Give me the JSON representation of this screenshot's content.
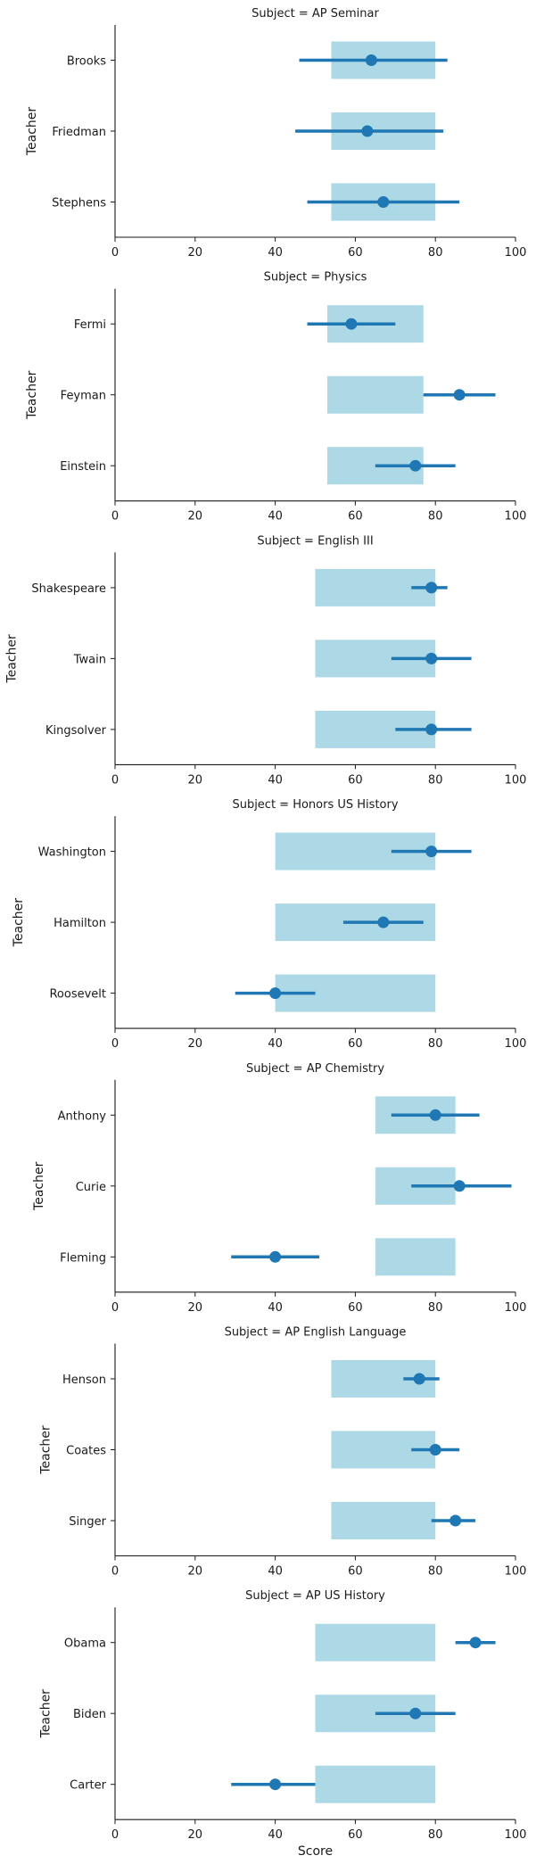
{
  "chart_data": {
    "type": "point-range",
    "facet_label": "Subject",
    "xlabel": "Score",
    "ylabel": "Teacher",
    "xlim": [
      0,
      100
    ],
    "xticks": [
      0,
      20,
      40,
      60,
      80,
      100
    ],
    "colors": {
      "band": "#add8e6",
      "point": "#1f77b4"
    },
    "panels": [
      {
        "title": "Subject = AP Seminar",
        "band": [
          54,
          80
        ],
        "teachers": [
          {
            "name": "Brooks",
            "mean": 64,
            "low": 46,
            "high": 83
          },
          {
            "name": "Friedman",
            "mean": 63,
            "low": 45,
            "high": 82
          },
          {
            "name": "Stephens",
            "mean": 67,
            "low": 48,
            "high": 86
          }
        ]
      },
      {
        "title": "Subject = Physics",
        "band": [
          53,
          77
        ],
        "teachers": [
          {
            "name": "Fermi",
            "mean": 59,
            "low": 48,
            "high": 70
          },
          {
            "name": "Feyman",
            "mean": 86,
            "low": 77,
            "high": 95
          },
          {
            "name": "Einstein",
            "mean": 75,
            "low": 65,
            "high": 85
          }
        ]
      },
      {
        "title": "Subject = English III",
        "band": [
          50,
          80
        ],
        "teachers": [
          {
            "name": "Shakespeare",
            "mean": 79,
            "low": 74,
            "high": 83
          },
          {
            "name": "Twain",
            "mean": 79,
            "low": 69,
            "high": 89
          },
          {
            "name": "Kingsolver",
            "mean": 79,
            "low": 70,
            "high": 89
          }
        ]
      },
      {
        "title": "Subject = Honors US History",
        "band": [
          40,
          80
        ],
        "teachers": [
          {
            "name": "Washington",
            "mean": 79,
            "low": 69,
            "high": 89
          },
          {
            "name": "Hamilton",
            "mean": 67,
            "low": 57,
            "high": 77
          },
          {
            "name": "Roosevelt",
            "mean": 40,
            "low": 30,
            "high": 50
          }
        ]
      },
      {
        "title": "Subject = AP Chemistry",
        "band": [
          65,
          85
        ],
        "teachers": [
          {
            "name": "Anthony",
            "mean": 80,
            "low": 69,
            "high": 91
          },
          {
            "name": "Curie",
            "mean": 86,
            "low": 74,
            "high": 99
          },
          {
            "name": "Fleming",
            "mean": 40,
            "low": 29,
            "high": 51
          }
        ]
      },
      {
        "title": "Subject = AP English Language",
        "band": [
          54,
          80
        ],
        "teachers": [
          {
            "name": "Henson",
            "mean": 76,
            "low": 72,
            "high": 81
          },
          {
            "name": "Coates",
            "mean": 80,
            "low": 74,
            "high": 86
          },
          {
            "name": "Singer",
            "mean": 85,
            "low": 79,
            "high": 90
          }
        ]
      },
      {
        "title": "Subject = AP US History",
        "band": [
          50,
          80
        ],
        "teachers": [
          {
            "name": "Obama",
            "mean": 90,
            "low": 85,
            "high": 95
          },
          {
            "name": "Biden",
            "mean": 75,
            "low": 65,
            "high": 85
          },
          {
            "name": "Carter",
            "mean": 40,
            "low": 29,
            "high": 50
          }
        ]
      }
    ]
  }
}
